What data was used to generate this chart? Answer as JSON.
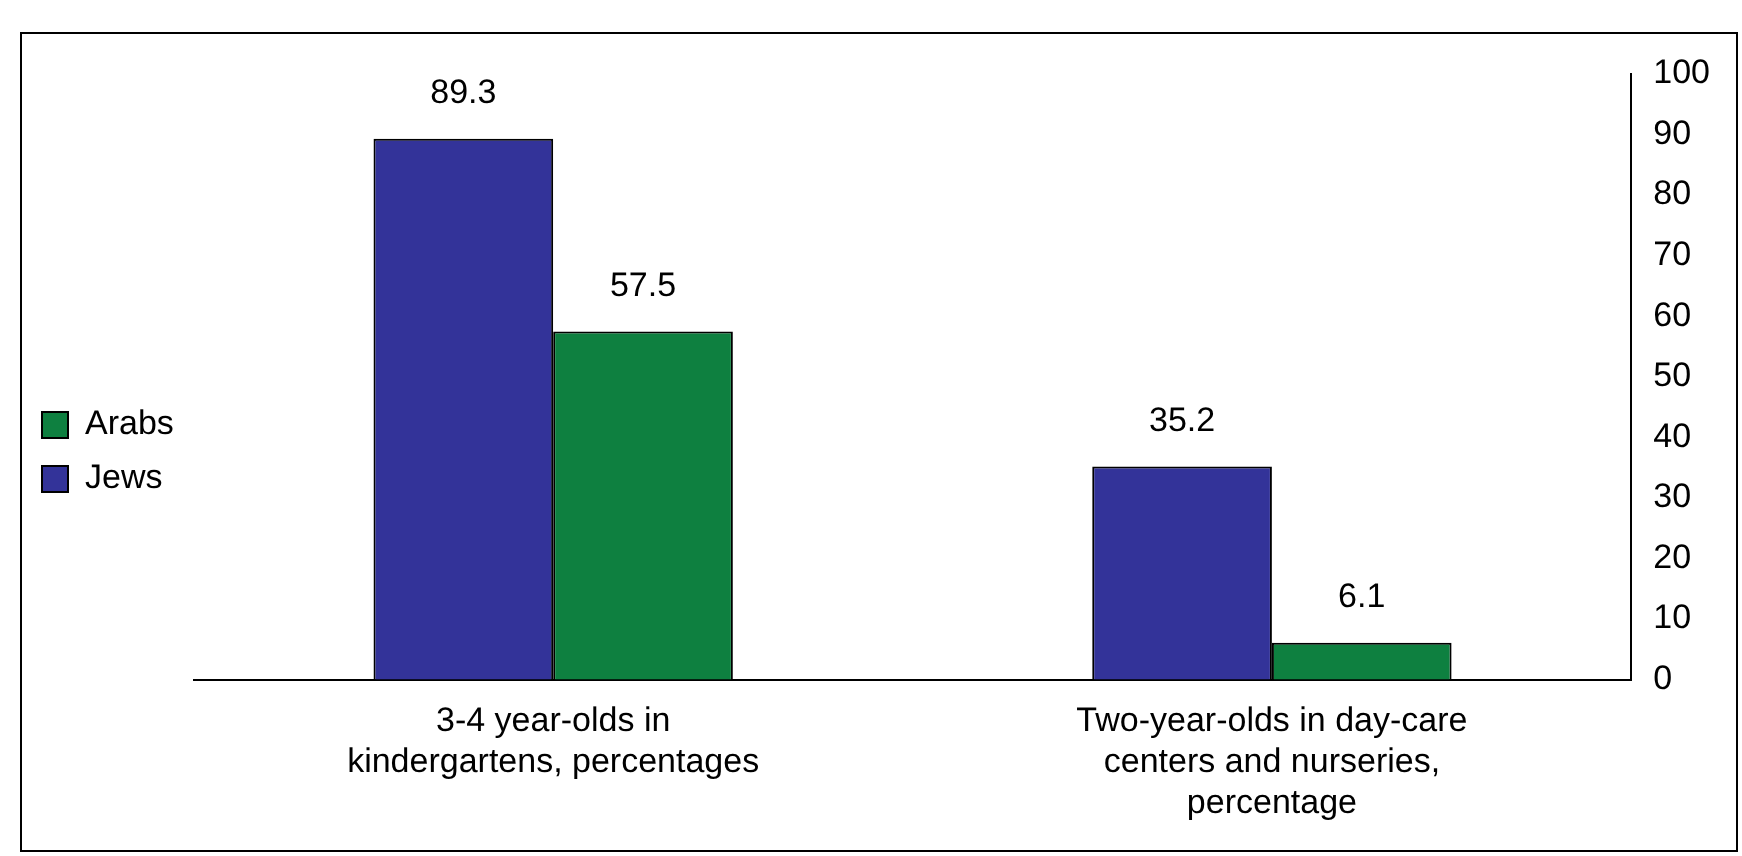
{
  "chart_data": {
    "type": "bar",
    "categories": [
      "3-4 year-olds in kindergartens, percentages",
      "Two-year-olds in day-care centers and nurseries, percentage"
    ],
    "series": [
      {
        "name": "Jews",
        "color": "#333399",
        "values": [
          89.3,
          35.2
        ]
      },
      {
        "name": "Arabs",
        "color": "#0e8040",
        "values": [
          57.5,
          6.1
        ]
      }
    ],
    "ylim": [
      0,
      100
    ],
    "yticks": [
      0,
      10,
      20,
      30,
      40,
      50,
      60,
      70,
      80,
      90,
      100
    ],
    "grid": false,
    "legend": "left",
    "data_labels": true
  }
}
